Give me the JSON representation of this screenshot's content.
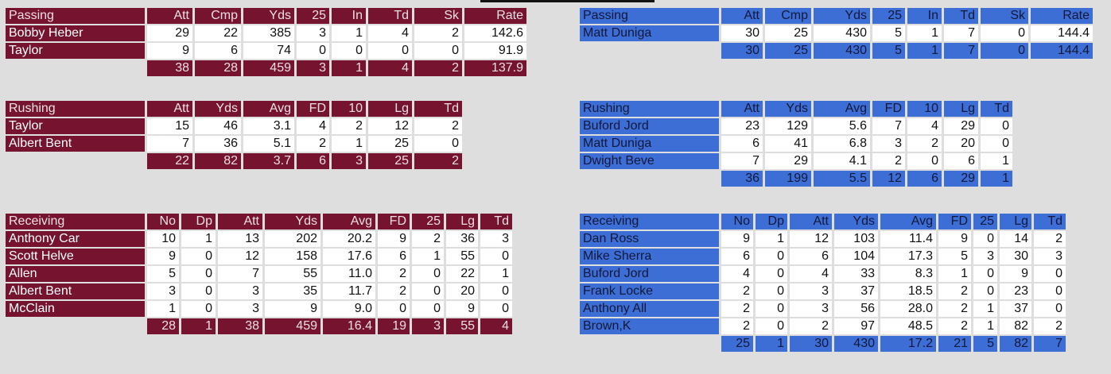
{
  "home": {
    "passing": {
      "title": "Passing",
      "cols": [
        "Att",
        "Cmp",
        "Yds",
        "25",
        "In",
        "Td",
        "Sk",
        "Rate"
      ],
      "rows": [
        {
          "name": "Bobby Heber",
          "vals": [
            "29",
            "22",
            "385",
            "3",
            "1",
            "4",
            "2",
            "142.6"
          ]
        },
        {
          "name": "Taylor",
          "vals": [
            "9",
            "6",
            "74",
            "0",
            "0",
            "0",
            "0",
            "91.9"
          ]
        }
      ],
      "totals": [
        "38",
        "28",
        "459",
        "3",
        "1",
        "4",
        "2",
        "137.9"
      ]
    },
    "rushing": {
      "title": "Rushing",
      "cols": [
        "Att",
        "Yds",
        "Avg",
        "FD",
        "10",
        "Lg",
        "Td"
      ],
      "rows": [
        {
          "name": "Taylor",
          "vals": [
            "15",
            "46",
            "3.1",
            "4",
            "2",
            "12",
            "2"
          ]
        },
        {
          "name": "Albert Bent",
          "vals": [
            "7",
            "36",
            "5.1",
            "2",
            "1",
            "25",
            "0"
          ]
        }
      ],
      "totals": [
        "22",
        "82",
        "3.7",
        "6",
        "3",
        "25",
        "2"
      ]
    },
    "receiving": {
      "title": "Receiving",
      "cols": [
        "No",
        "Dp",
        "Att",
        "Yds",
        "Avg",
        "FD",
        "25",
        "Lg",
        "Td"
      ],
      "rows": [
        {
          "name": "Anthony Car",
          "vals": [
            "10",
            "1",
            "13",
            "202",
            "20.2",
            "9",
            "2",
            "36",
            "3"
          ]
        },
        {
          "name": "Scott Helve",
          "vals": [
            "9",
            "0",
            "12",
            "158",
            "17.6",
            "6",
            "1",
            "55",
            "0"
          ]
        },
        {
          "name": "Allen",
          "vals": [
            "5",
            "0",
            "7",
            "55",
            "11.0",
            "2",
            "0",
            "22",
            "1"
          ]
        },
        {
          "name": "Albert Bent",
          "vals": [
            "3",
            "0",
            "3",
            "35",
            "11.7",
            "2",
            "0",
            "20",
            "0"
          ]
        },
        {
          "name": "McClain",
          "vals": [
            "1",
            "0",
            "3",
            "9",
            "9.0",
            "0",
            "0",
            "9",
            "0"
          ]
        }
      ],
      "totals": [
        "28",
        "1",
        "38",
        "459",
        "16.4",
        "19",
        "3",
        "55",
        "4"
      ]
    }
  },
  "away": {
    "passing": {
      "title": "Passing",
      "cols": [
        "Att",
        "Cmp",
        "Yds",
        "25",
        "In",
        "Td",
        "Sk",
        "Rate"
      ],
      "rows": [
        {
          "name": "Matt Duniga",
          "vals": [
            "30",
            "25",
            "430",
            "5",
            "1",
            "7",
            "0",
            "144.4"
          ]
        }
      ],
      "totals": [
        "30",
        "25",
        "430",
        "5",
        "1",
        "7",
        "0",
        "144.4"
      ]
    },
    "rushing": {
      "title": "Rushing",
      "cols": [
        "Att",
        "Yds",
        "Avg",
        "FD",
        "10",
        "Lg",
        "Td"
      ],
      "rows": [
        {
          "name": "Buford Jord",
          "vals": [
            "23",
            "129",
            "5.6",
            "7",
            "4",
            "29",
            "0"
          ]
        },
        {
          "name": "Matt Duniga",
          "vals": [
            "6",
            "41",
            "6.8",
            "3",
            "2",
            "20",
            "0"
          ]
        },
        {
          "name": "Dwight Beve",
          "vals": [
            "7",
            "29",
            "4.1",
            "2",
            "0",
            "6",
            "1"
          ]
        }
      ],
      "totals": [
        "36",
        "199",
        "5.5",
        "12",
        "6",
        "29",
        "1"
      ]
    },
    "receiving": {
      "title": "Receiving",
      "cols": [
        "No",
        "Dp",
        "Att",
        "Yds",
        "Avg",
        "FD",
        "25",
        "Lg",
        "Td"
      ],
      "rows": [
        {
          "name": "Dan Ross",
          "vals": [
            "9",
            "1",
            "12",
            "103",
            "11.4",
            "9",
            "0",
            "14",
            "2"
          ]
        },
        {
          "name": "Mike Sherra",
          "vals": [
            "6",
            "0",
            "6",
            "104",
            "17.3",
            "5",
            "3",
            "30",
            "3"
          ]
        },
        {
          "name": "Buford Jord",
          "vals": [
            "4",
            "0",
            "4",
            "33",
            "8.3",
            "1",
            "0",
            "9",
            "0"
          ]
        },
        {
          "name": "Frank Locke",
          "vals": [
            "2",
            "0",
            "3",
            "37",
            "18.5",
            "2",
            "0",
            "23",
            "0"
          ]
        },
        {
          "name": "Anthony All",
          "vals": [
            "2",
            "0",
            "3",
            "56",
            "28.0",
            "2",
            "1",
            "37",
            "0"
          ]
        },
        {
          "name": "Brown,K",
          "vals": [
            "2",
            "0",
            "2",
            "97",
            "48.5",
            "2",
            "1",
            "82",
            "2"
          ]
        }
      ],
      "totals": [
        "25",
        "1",
        "30",
        "430",
        "17.2",
        "21",
        "5",
        "82",
        "7"
      ]
    }
  },
  "colors": {
    "home": "#76132f",
    "away": "#3c6ed6",
    "cell": "#ffffff",
    "background": "#dedede"
  }
}
